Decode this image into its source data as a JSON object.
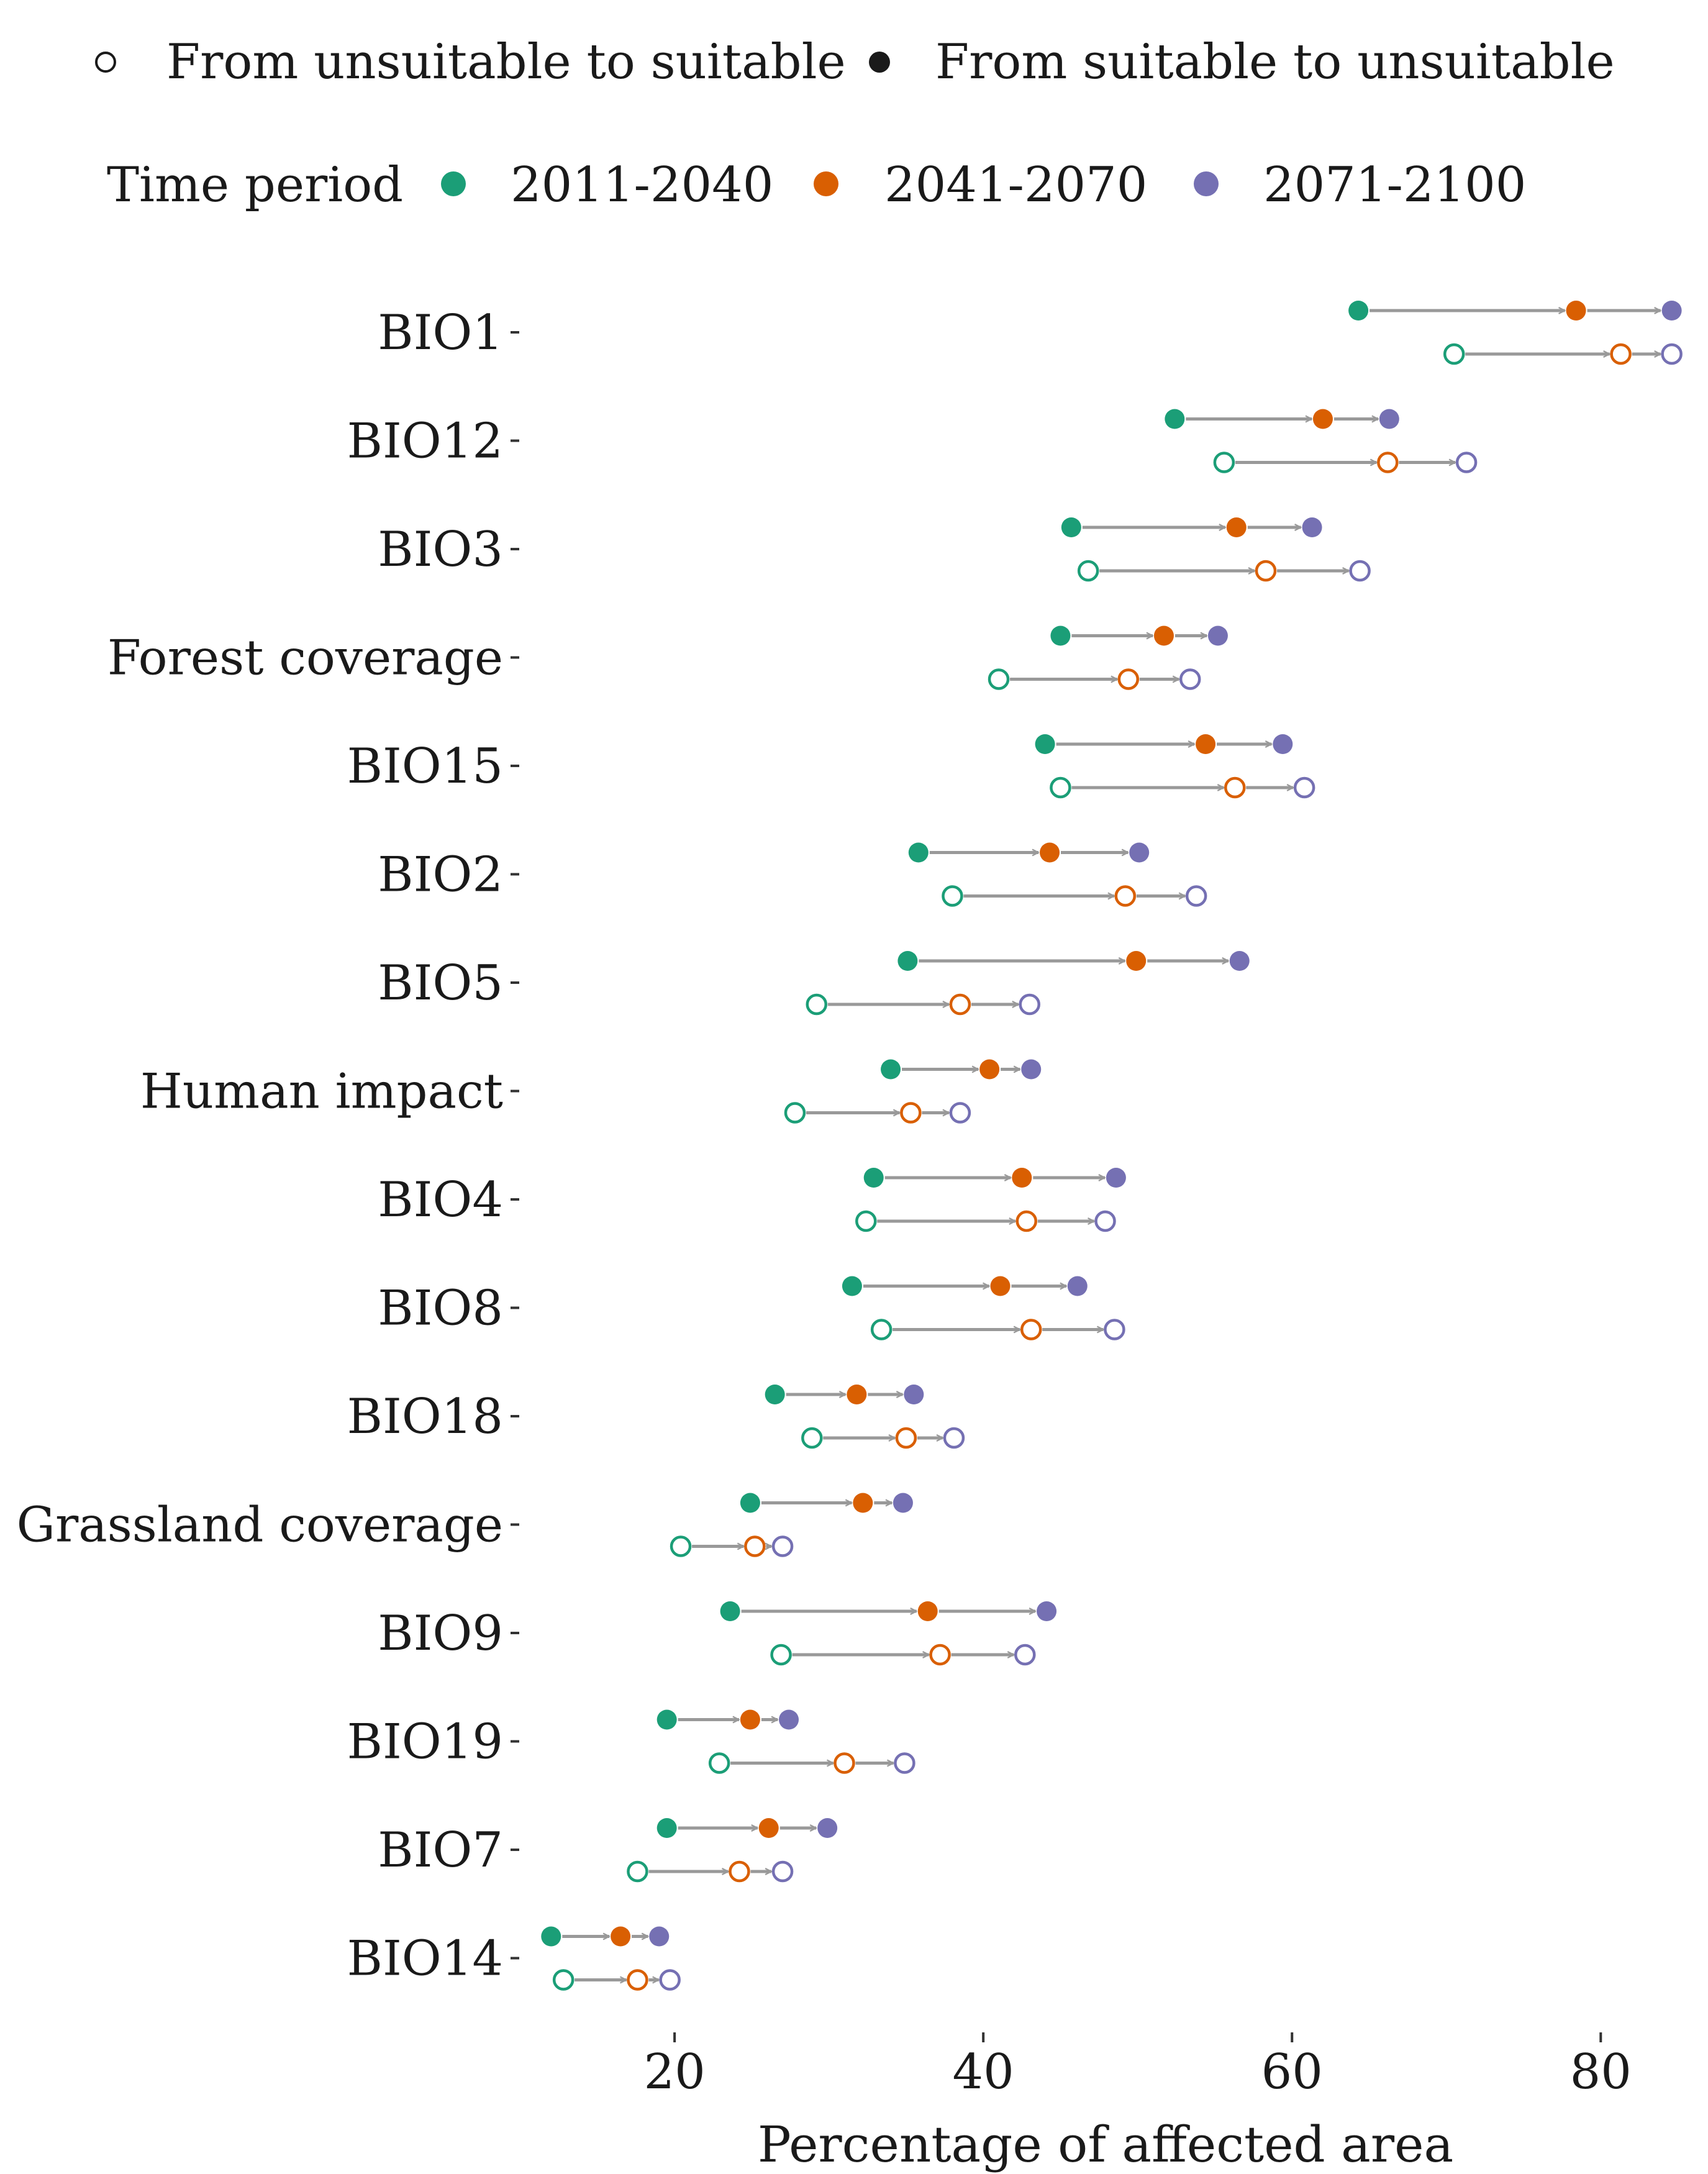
{
  "chart_data": {
    "type": "dumbbell",
    "xlabel": "Percentage of affected area",
    "xlim": [
      10.5,
      85.5
    ],
    "xticks": [
      20,
      40,
      60,
      80
    ],
    "legend_shape": {
      "items": [
        {
          "label": "From unsuitable to suitable",
          "marker": "open"
        },
        {
          "label": "From suitable to unsuitable",
          "marker": "filled"
        }
      ]
    },
    "legend_period": {
      "title": "Time period",
      "items": [
        {
          "label": "2011-2040",
          "color": "#1b9e77"
        },
        {
          "label": "2041-2070",
          "color": "#d95f02"
        },
        {
          "label": "2071-2100",
          "color": "#7570b3"
        }
      ]
    },
    "categories": [
      "BIO1",
      "BIO12",
      "BIO3",
      "Forest coverage",
      "BIO15",
      "BIO2",
      "BIO5",
      "Human impact",
      "BIO4",
      "BIO8",
      "BIO18",
      "Grassland coverage",
      "BIO9",
      "BIO19",
      "BIO7",
      "BIO14"
    ],
    "series": [
      {
        "name": "From suitable to unsuitable",
        "marker": "filled",
        "values": [
          [
            64.3,
            78.4,
            84.6
          ],
          [
            52.4,
            62.0,
            66.3
          ],
          [
            45.7,
            56.4,
            61.3
          ],
          [
            45.0,
            51.7,
            55.2
          ],
          [
            44.0,
            54.4,
            59.4
          ],
          [
            35.8,
            44.3,
            50.1
          ],
          [
            35.1,
            49.9,
            56.6
          ],
          [
            34.0,
            40.4,
            43.1
          ],
          [
            32.9,
            42.5,
            48.6
          ],
          [
            31.5,
            41.1,
            46.1
          ],
          [
            26.5,
            31.8,
            35.5
          ],
          [
            24.9,
            32.2,
            34.8
          ],
          [
            23.6,
            36.4,
            44.1
          ],
          [
            19.5,
            24.9,
            27.4
          ],
          [
            19.5,
            26.1,
            29.9
          ],
          [
            12.0,
            16.5,
            19.0
          ]
        ]
      },
      {
        "name": "From unsuitable to suitable",
        "marker": "open",
        "values": [
          [
            70.5,
            81.3,
            84.6
          ],
          [
            55.6,
            66.2,
            71.3
          ],
          [
            46.8,
            58.3,
            64.4
          ],
          [
            41.0,
            49.4,
            53.4
          ],
          [
            45.0,
            56.3,
            60.8
          ],
          [
            38.0,
            49.2,
            53.8
          ],
          [
            29.2,
            38.5,
            43.0
          ],
          [
            27.8,
            35.3,
            38.5
          ],
          [
            32.4,
            42.8,
            47.9
          ],
          [
            33.4,
            43.1,
            48.5
          ],
          [
            28.9,
            35.0,
            38.1
          ],
          [
            20.4,
            25.2,
            27.0
          ],
          [
            26.9,
            37.2,
            42.7
          ],
          [
            22.9,
            31.0,
            34.9
          ],
          [
            17.6,
            24.2,
            27.0
          ],
          [
            12.8,
            17.6,
            19.7
          ]
        ]
      }
    ]
  }
}
